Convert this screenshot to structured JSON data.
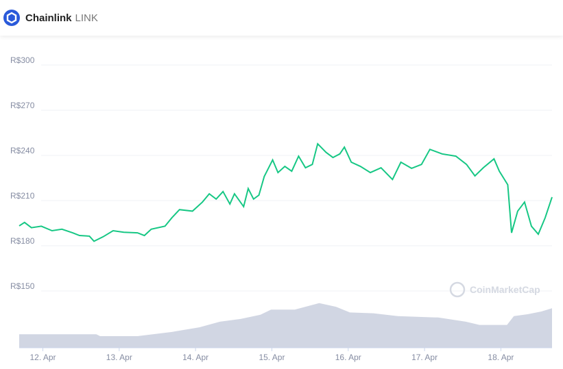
{
  "header": {
    "name": "Chainlink",
    "symbol": "LINK"
  },
  "chart_data": {
    "type": "line",
    "watermark": "CoinMarketCap",
    "xlim": [
      11.69,
      18.67
    ],
    "xticks": [
      {
        "value": 12,
        "label": "12. Apr"
      },
      {
        "value": 13,
        "label": "13. Apr"
      },
      {
        "value": 14,
        "label": "14. Apr"
      },
      {
        "value": 15,
        "label": "15. Apr"
      },
      {
        "value": 16,
        "label": "16. Apr"
      },
      {
        "value": 17,
        "label": "17. Apr"
      },
      {
        "value": 18,
        "label": "18. Apr"
      }
    ],
    "ylim": [
      150,
      300
    ],
    "yticks": [
      {
        "value": 150,
        "label": "R$150"
      },
      {
        "value": 180,
        "label": "R$180"
      },
      {
        "value": 210,
        "label": "R$210"
      },
      {
        "value": 240,
        "label": "R$240"
      },
      {
        "value": 270,
        "label": "R$270"
      },
      {
        "value": 300,
        "label": "R$300"
      }
    ],
    "y2lim": [
      0,
      100
    ],
    "grid": true,
    "series": [
      {
        "type": "line",
        "color": "#16c784",
        "x": [
          11.69,
          11.76,
          11.85,
          11.98,
          12.12,
          12.25,
          12.39,
          12.48,
          12.61,
          12.67,
          12.79,
          12.92,
          13.06,
          13.24,
          13.33,
          13.42,
          13.6,
          13.69,
          13.79,
          13.96,
          14.09,
          14.18,
          14.27,
          14.36,
          14.45,
          14.51,
          14.63,
          14.69,
          14.76,
          14.83,
          14.9,
          15.01,
          15.08,
          15.17,
          15.26,
          15.35,
          15.44,
          15.53,
          15.6,
          15.71,
          15.8,
          15.89,
          15.95,
          16.04,
          16.16,
          16.29,
          16.43,
          16.58,
          16.69,
          16.83,
          16.96,
          17.07,
          17.23,
          17.41,
          17.55,
          17.66,
          17.77,
          17.91,
          17.98,
          18.09,
          18.14,
          18.22,
          18.31,
          18.4,
          18.49,
          18.58,
          18.67
        ],
        "values": [
          193.2,
          195.5,
          192,
          193,
          190,
          191,
          188.6,
          186.8,
          186.4,
          183,
          186,
          190,
          189,
          188.6,
          186.8,
          191,
          193,
          198.6,
          204,
          203,
          209,
          214.5,
          211,
          216,
          207.7,
          214.5,
          206,
          218,
          211,
          213.6,
          226,
          237,
          228.6,
          232.7,
          229.5,
          239.5,
          231.8,
          234,
          247.7,
          242,
          238.6,
          241,
          245.5,
          235.5,
          232.7,
          228.6,
          231.8,
          224,
          235.5,
          231.4,
          234,
          244,
          241,
          239.5,
          234,
          226.4,
          231.8,
          237.7,
          229.5,
          220.5,
          188.6,
          203,
          209,
          193,
          187.7,
          198.6,
          212.3
        ]
      },
      {
        "type": "area",
        "axis": "y2",
        "color": "#d1d6e3",
        "x": [
          11.69,
          12.7,
          12.75,
          13.24,
          13.69,
          14.05,
          14.32,
          14.59,
          14.85,
          14.99,
          15.3,
          15.62,
          15.84,
          16.02,
          16.33,
          16.65,
          17.18,
          17.54,
          17.72,
          18.08,
          18.17,
          18.35,
          18.53,
          18.67
        ],
        "values": [
          29,
          29,
          25,
          25,
          34,
          44,
          56,
          62,
          71,
          82,
          82,
          96,
          88,
          76,
          74,
          68,
          65,
          56,
          49,
          49,
          68,
          72,
          78,
          85
        ]
      }
    ]
  }
}
